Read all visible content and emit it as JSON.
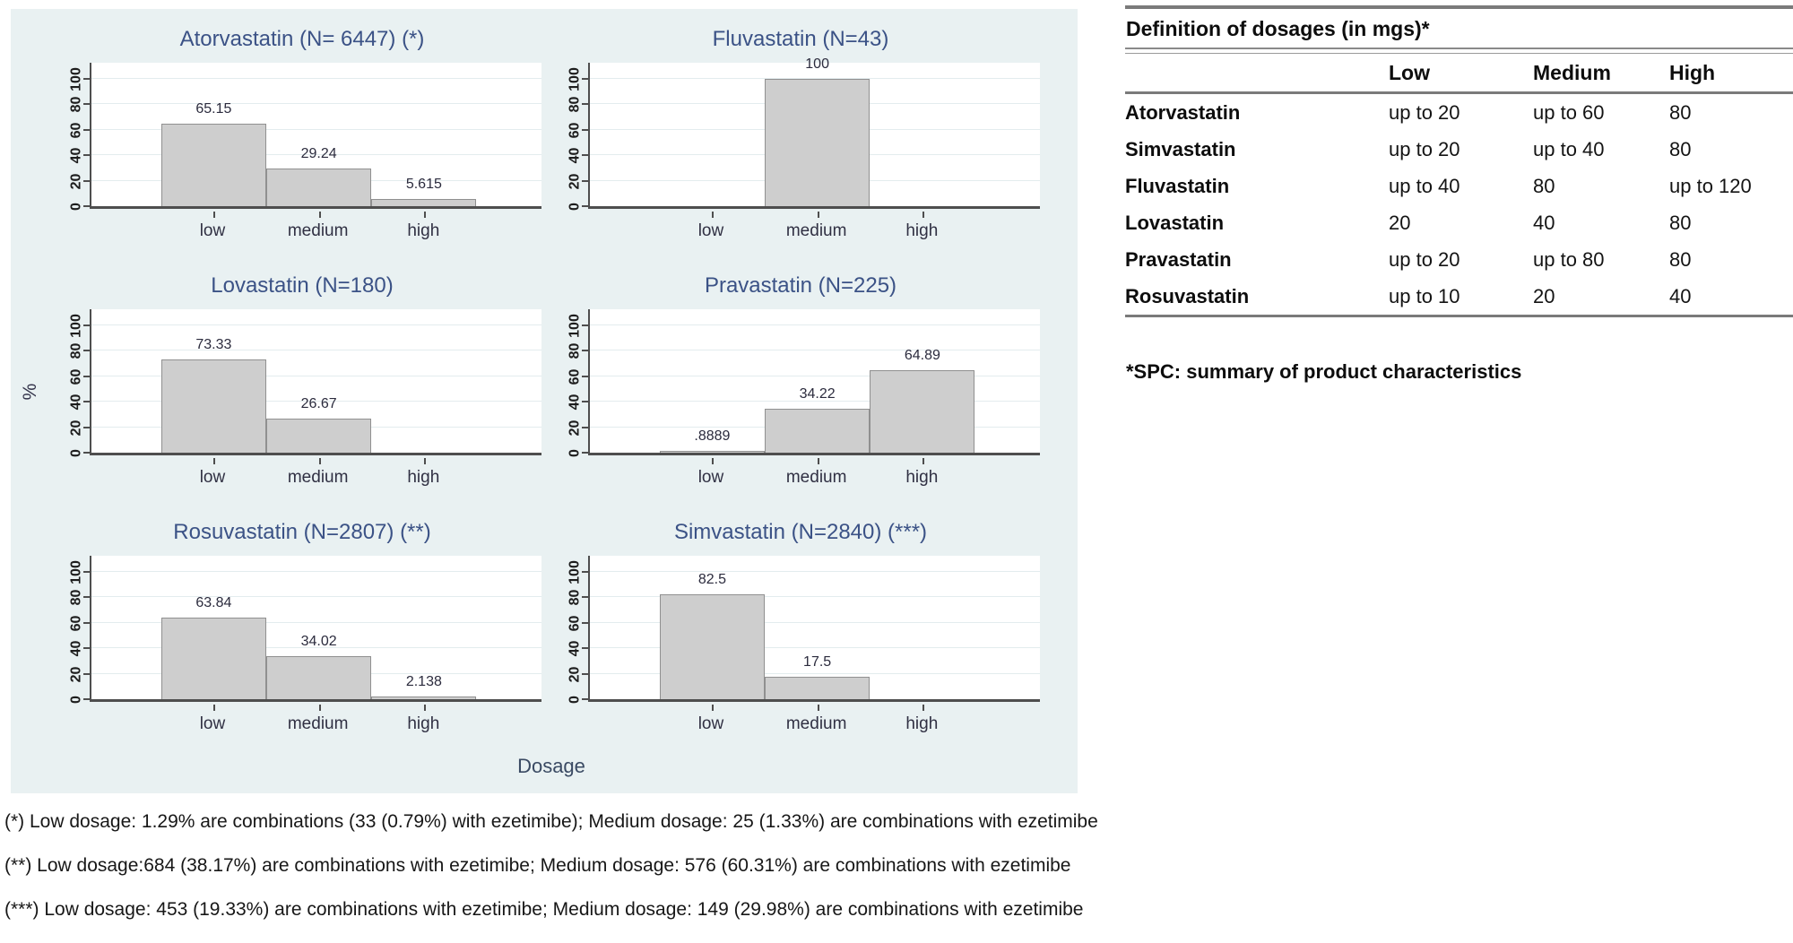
{
  "axes": {
    "ylabel": "%",
    "xlabel": "Dosage"
  },
  "chart_data": [
    {
      "type": "bar",
      "title": "Atorvastatin (N= 6447) (*)",
      "categories": [
        "low",
        "medium",
        "high"
      ],
      "values": [
        65.15,
        29.24,
        5.615
      ],
      "value_labels": [
        "65.15",
        "29.24",
        "5.615"
      ],
      "xlabel": "Dosage",
      "ylabel": "%",
      "ylim": [
        0,
        100
      ],
      "yticks": [
        0,
        20,
        40,
        60,
        80,
        100
      ],
      "grid": true
    },
    {
      "type": "bar",
      "title": "Fluvastatin (N=43)",
      "categories": [
        "low",
        "medium",
        "high"
      ],
      "values": [
        0,
        100,
        0
      ],
      "value_labels": [
        null,
        "100",
        null
      ],
      "xlabel": "Dosage",
      "ylabel": "%",
      "ylim": [
        0,
        100
      ],
      "yticks": [
        0,
        20,
        40,
        60,
        80,
        100
      ],
      "grid": true
    },
    {
      "type": "bar",
      "title": "Lovastatin (N=180)",
      "categories": [
        "low",
        "medium",
        "high"
      ],
      "values": [
        73.33,
        26.67,
        0
      ],
      "value_labels": [
        "73.33",
        "26.67",
        null
      ],
      "xlabel": "Dosage",
      "ylabel": "%",
      "ylim": [
        0,
        100
      ],
      "yticks": [
        0,
        20,
        40,
        60,
        80,
        100
      ],
      "grid": true
    },
    {
      "type": "bar",
      "title": "Pravastatin (N=225)",
      "categories": [
        "low",
        "medium",
        "high"
      ],
      "values": [
        0.8889,
        34.22,
        64.89
      ],
      "value_labels": [
        ".8889",
        "34.22",
        "64.89"
      ],
      "xlabel": "Dosage",
      "ylabel": "%",
      "ylim": [
        0,
        100
      ],
      "yticks": [
        0,
        20,
        40,
        60,
        80,
        100
      ],
      "grid": true
    },
    {
      "type": "bar",
      "title": "Rosuvastatin (N=2807) (**)",
      "categories": [
        "low",
        "medium",
        "high"
      ],
      "values": [
        63.84,
        34.02,
        2.138
      ],
      "value_labels": [
        "63.84",
        "34.02",
        "2.138"
      ],
      "xlabel": "Dosage",
      "ylabel": "%",
      "ylim": [
        0,
        100
      ],
      "yticks": [
        0,
        20,
        40,
        60,
        80,
        100
      ],
      "grid": true
    },
    {
      "type": "bar",
      "title": "Simvastatin (N=2840) (***)",
      "categories": [
        "low",
        "medium",
        "high"
      ],
      "values": [
        82.5,
        17.5,
        0
      ],
      "value_labels": [
        "82.5",
        "17.5",
        null
      ],
      "xlabel": "Dosage",
      "ylabel": "%",
      "ylim": [
        0,
        100
      ],
      "yticks": [
        0,
        20,
        40,
        60,
        80,
        100
      ],
      "grid": true
    }
  ],
  "dosage_table": {
    "title": "Definition of dosages (in mgs)*",
    "columns": [
      "Low",
      "Medium",
      "High"
    ],
    "rows": [
      {
        "name": "Atorvastatin",
        "low": "up to 20",
        "medium": "up to  60",
        "high": "80"
      },
      {
        "name": "Simvastatin",
        "low": "up to 20",
        "medium": "up to  40",
        "high": "80"
      },
      {
        "name": "Fluvastatin",
        "low": "up to 40",
        "medium": "80",
        "high": "up to  120"
      },
      {
        "name": "Lovastatin",
        "low": "20",
        "medium": "40",
        "high": "80"
      },
      {
        "name": "Pravastatin",
        "low": "up to 20",
        "medium": "up to  80",
        "high": "80"
      },
      {
        "name": "Rosuvastatin",
        "low": "up to 10",
        "medium": "20",
        "high": "40"
      }
    ],
    "note": "*SPC: summary of product characteristics"
  },
  "footnotes": [
    "(*) Low dosage: 1.29% are combinations (33 (0.79%) with ezetimibe); Medium dosage: 25 (1.33%) are combinations with ezetimibe",
    "(**) Low dosage:684 (38.17%) are combinations  with ezetimibe; Medium dosage: 576 (60.31%) are combinations with ezetimibe",
    "(***) Low dosage: 453 (19.33%) are combinations with ezetimibe; Medium dosage: 149 (29.98%) are combinations with ezetimibe"
  ],
  "colors": {
    "panel_bg": "#e9f1f2",
    "bar_fill": "#cecece",
    "bar_border": "#909090",
    "axis": "#4e4e4e",
    "title_text": "#3b5286",
    "table_rule": "#7a7a7a"
  }
}
